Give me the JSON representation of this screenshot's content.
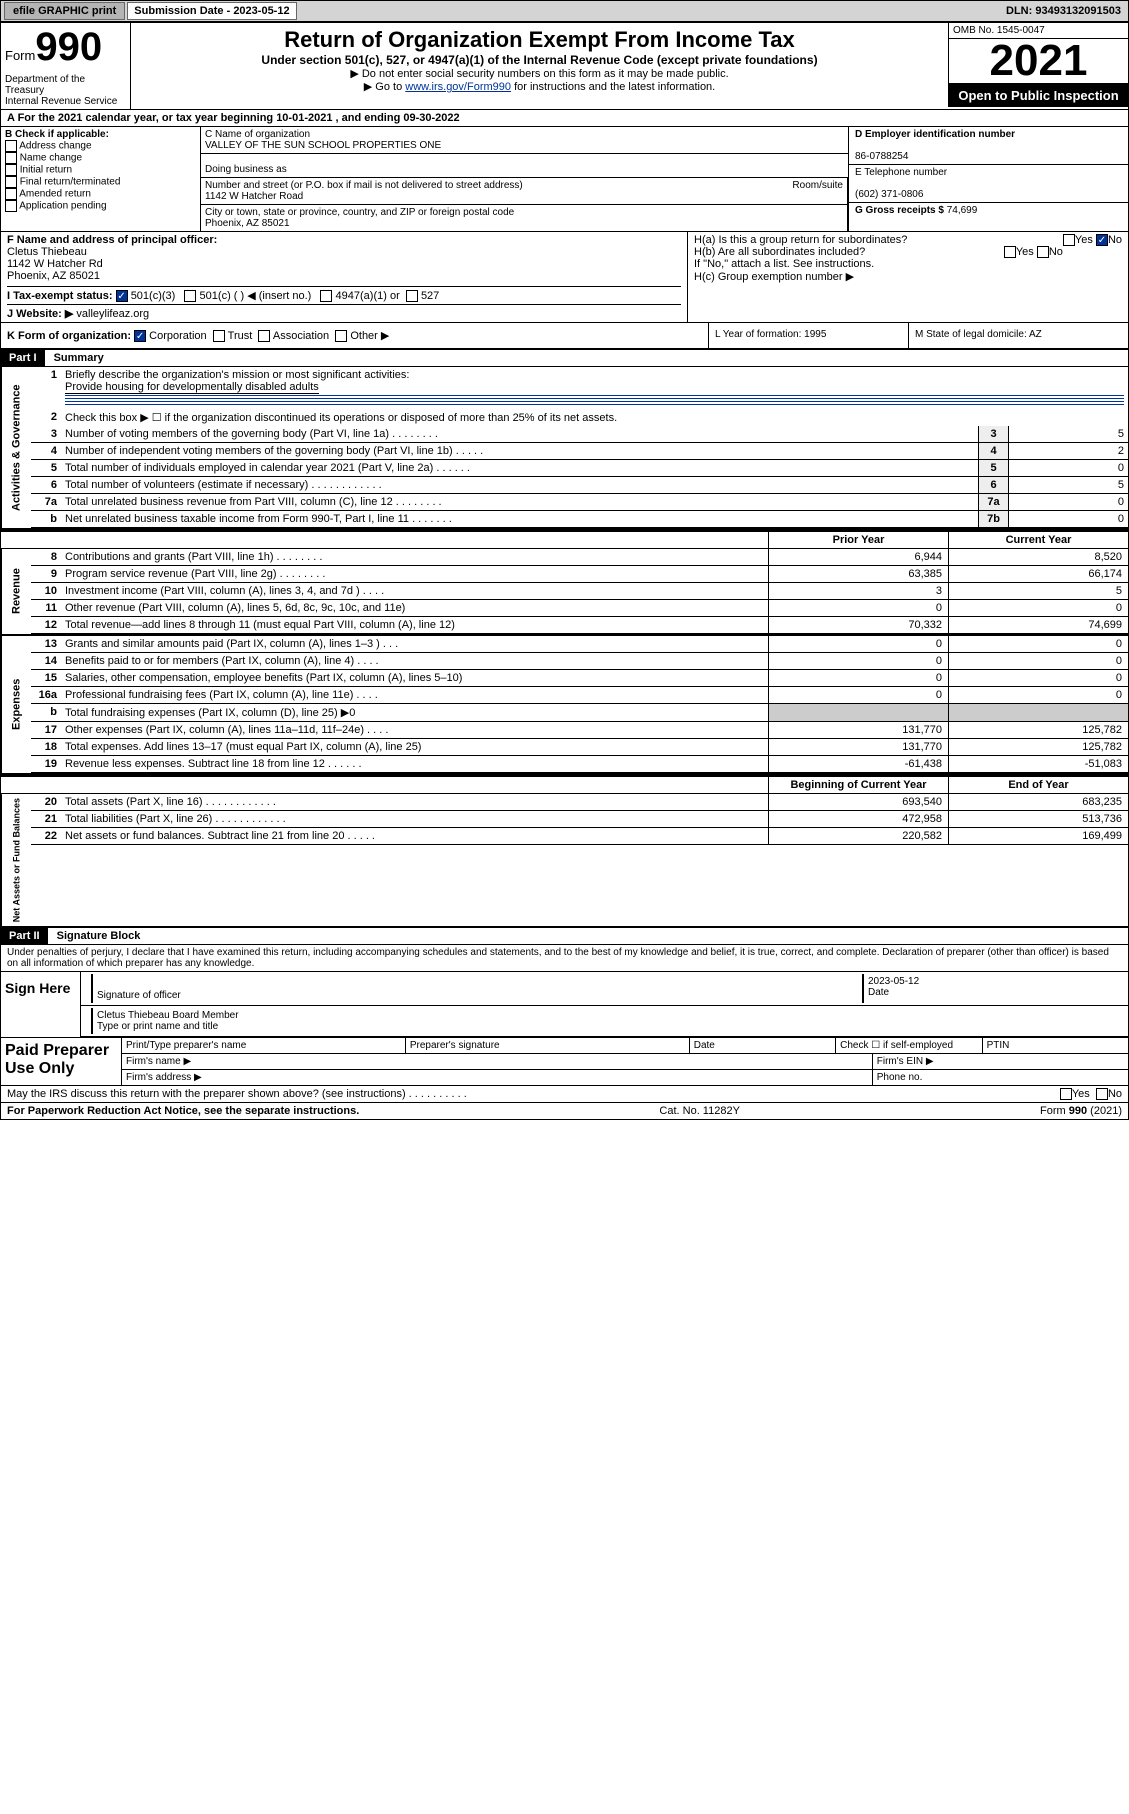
{
  "topbar": {
    "efile": "efile GRAPHIC print",
    "sub_label": "Submission Date - 2023-05-12",
    "dln": "DLN: 93493132091503"
  },
  "header": {
    "form_label": "Form",
    "form_no": "990",
    "title": "Return of Organization Exempt From Income Tax",
    "sub": "Under section 501(c), 527, or 4947(a)(1) of the Internal Revenue Code (except private foundations)",
    "note1": "▶ Do not enter social security numbers on this form as it may be made public.",
    "note2_pre": "▶ Go to ",
    "note2_link": "www.irs.gov/Form990",
    "note2_post": " for instructions and the latest information.",
    "dept": "Department of the Treasury\nInternal Revenue Service",
    "omb": "OMB No. 1545-0047",
    "year": "2021",
    "open": "Open to Public Inspection"
  },
  "rowA": "A For the 2021 calendar year, or tax year beginning 10-01-2021   , and ending 09-30-2022",
  "B": {
    "label": "B Check if applicable:",
    "opts": [
      "Address change",
      "Name change",
      "Initial return",
      "Final return/terminated",
      "Amended return",
      "Application pending"
    ]
  },
  "C": {
    "name_lbl": "C Name of organization",
    "name": "VALLEY OF THE SUN SCHOOL PROPERTIES ONE",
    "dba_lbl": "Doing business as",
    "street_lbl": "Number and street (or P.O. box if mail is not delivered to street address)",
    "room_lbl": "Room/suite",
    "street": "1142 W Hatcher Road",
    "city_lbl": "City or town, state or province, country, and ZIP or foreign postal code",
    "city": "Phoenix, AZ  85021"
  },
  "D": {
    "lbl": "D Employer identification number",
    "val": "86-0788254"
  },
  "E": {
    "lbl": "E Telephone number",
    "val": "(602) 371-0806"
  },
  "G": {
    "lbl": "G Gross receipts $",
    "val": "74,699"
  },
  "F": {
    "lbl": "F Name and address of principal officer:",
    "name": "Cletus Thiebeau",
    "street": "1142 W Hatcher Rd",
    "city": "Phoenix, AZ  85021"
  },
  "H": {
    "a": "H(a)  Is this a group return for subordinates?",
    "b": "H(b)  Are all subordinates included?",
    "b_note": "If \"No,\" attach a list. See instructions.",
    "c": "H(c)  Group exemption number ▶",
    "yes": "Yes",
    "no": "No"
  },
  "I": {
    "lbl": "I      Tax-exempt status:",
    "o1": "501(c)(3)",
    "o2": "501(c) (  ) ◀ (insert no.)",
    "o3": "4947(a)(1) or",
    "o4": "527"
  },
  "J": {
    "lbl": "J     Website: ▶",
    "val": "valleylifeaz.org"
  },
  "K": {
    "lbl": "K Form of organization:",
    "c": "Corporation",
    "t": "Trust",
    "a": "Association",
    "o": "Other ▶"
  },
  "L": {
    "lbl": "L Year of formation: 1995"
  },
  "M": {
    "lbl": "M State of legal domicile: AZ"
  },
  "partI": {
    "hdr": "Part I",
    "title": "Summary",
    "l1_lbl": "Briefly describe the organization's mission or most significant activities:",
    "l1_val": "Provide housing for developmentally disabled adults",
    "l2": "Check this box ▶ ☐  if the organization discontinued its operations or disposed of more than 25% of its net assets.",
    "lines_gov": [
      {
        "n": "3",
        "d": "Number of voting members of the governing body (Part VI, line 1a)   .    .    .    .    .    .    .    .",
        "bn": "3",
        "v": "5"
      },
      {
        "n": "4",
        "d": "Number of independent voting members of the governing body (Part VI, line 1b)   .    .    .    .    .",
        "bn": "4",
        "v": "2"
      },
      {
        "n": "5",
        "d": "Total number of individuals employed in calendar year 2021 (Part V, line 2a)   .    .    .    .    .    .",
        "bn": "5",
        "v": "0"
      },
      {
        "n": "6",
        "d": "Total number of volunteers (estimate if necessary)   .    .    .    .    .    .    .    .    .    .    .    .",
        "bn": "6",
        "v": "5"
      },
      {
        "n": "7a",
        "d": "Total unrelated business revenue from Part VIII, column (C), line 12   .    .    .    .    .    .    .    .",
        "bn": "7a",
        "v": "0"
      },
      {
        "n": "b",
        "d": "Net unrelated business taxable income from Form 990-T, Part I, line 11   .    .    .    .    .    .    .",
        "bn": "7b",
        "v": "0"
      }
    ],
    "col_prior": "Prior Year",
    "col_curr": "Current Year",
    "rev": [
      {
        "n": "8",
        "d": "Contributions and grants (Part VIII, line 1h)   .    .    .    .    .    .    .    .",
        "p": "6,944",
        "c": "8,520"
      },
      {
        "n": "9",
        "d": "Program service revenue (Part VIII, line 2g)   .    .    .    .    .    .    .    .",
        "p": "63,385",
        "c": "66,174"
      },
      {
        "n": "10",
        "d": "Investment income (Part VIII, column (A), lines 3, 4, and 7d )   .    .    .    .",
        "p": "3",
        "c": "5"
      },
      {
        "n": "11",
        "d": "Other revenue (Part VIII, column (A), lines 5, 6d, 8c, 9c, 10c, and 11e)",
        "p": "0",
        "c": "0"
      },
      {
        "n": "12",
        "d": "Total revenue—add lines 8 through 11 (must equal Part VIII, column (A), line 12)",
        "p": "70,332",
        "c": "74,699"
      }
    ],
    "exp": [
      {
        "n": "13",
        "d": "Grants and similar amounts paid (Part IX, column (A), lines 1–3 )   .    .    .",
        "p": "0",
        "c": "0"
      },
      {
        "n": "14",
        "d": "Benefits paid to or for members (Part IX, column (A), line 4)   .    .    .    .",
        "p": "0",
        "c": "0"
      },
      {
        "n": "15",
        "d": "Salaries, other compensation, employee benefits (Part IX, column (A), lines 5–10)",
        "p": "0",
        "c": "0"
      },
      {
        "n": "16a",
        "d": "Professional fundraising fees (Part IX, column (A), line 11e)   .    .    .    .",
        "p": "0",
        "c": "0"
      },
      {
        "n": "b",
        "d": "Total fundraising expenses (Part IX, column (D), line 25) ▶0",
        "p": "",
        "c": "",
        "shade": true
      },
      {
        "n": "17",
        "d": "Other expenses (Part IX, column (A), lines 11a–11d, 11f–24e)   .    .    .    .",
        "p": "131,770",
        "c": "125,782"
      },
      {
        "n": "18",
        "d": "Total expenses. Add lines 13–17 (must equal Part IX, column (A), line 25)",
        "p": "131,770",
        "c": "125,782"
      },
      {
        "n": "19",
        "d": "Revenue less expenses. Subtract line 18 from line 12   .    .    .    .    .    .",
        "p": "-61,438",
        "c": "-51,083"
      }
    ],
    "col_beg": "Beginning of Current Year",
    "col_end": "End of Year",
    "net": [
      {
        "n": "20",
        "d": "Total assets (Part X, line 16)   .    .    .    .    .    .    .    .    .    .    .    .",
        "p": "693,540",
        "c": "683,235"
      },
      {
        "n": "21",
        "d": "Total liabilities (Part X, line 26)   .    .    .    .    .    .    .    .    .    .    .    .",
        "p": "472,958",
        "c": "513,736"
      },
      {
        "n": "22",
        "d": "Net assets or fund balances. Subtract line 21 from line 20   .    .    .    .    .",
        "p": "220,582",
        "c": "169,499"
      }
    ],
    "side_gov": "Activities & Governance",
    "side_rev": "Revenue",
    "side_exp": "Expenses",
    "side_net": "Net Assets or Fund Balances"
  },
  "partII": {
    "hdr": "Part II",
    "title": "Signature Block",
    "decl": "Under penalties of perjury, I declare that I have examined this return, including accompanying schedules and statements, and to the best of my knowledge and belief, it is true, correct, and complete. Declaration of preparer (other than officer) is based on all information of which preparer has any knowledge.",
    "sign_here": "Sign Here",
    "sig_officer": "Signature of officer",
    "date": "Date",
    "date_val": "2023-05-12",
    "name_title": "Cletus Thiebeau  Board Member",
    "name_title_lbl": "Type or print name and title",
    "paid": "Paid Preparer Use Only",
    "pt_name": "Print/Type preparer's name",
    "pt_sig": "Preparer's signature",
    "pt_date": "Date",
    "pt_chk": "Check ☐ if self-employed",
    "ptin": "PTIN",
    "firm_name": "Firm's name    ▶",
    "firm_ein": "Firm's EIN ▶",
    "firm_addr": "Firm's address ▶",
    "phone": "Phone no.",
    "may": "May the IRS discuss this return with the preparer shown above? (see instructions)   .    .    .    .    .    .    .    .    .    .",
    "paperwork": "For Paperwork Reduction Act Notice, see the separate instructions.",
    "cat": "Cat. No. 11282Y",
    "formno": "Form 990 (2021)"
  }
}
